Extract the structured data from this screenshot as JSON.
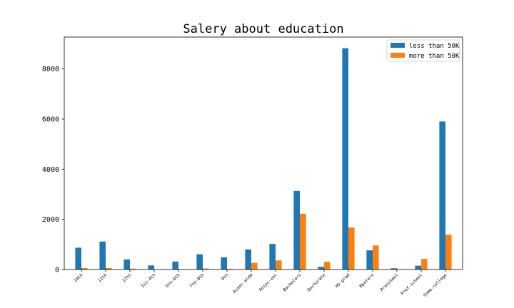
{
  "chart_data": {
    "type": "bar",
    "title": "Salery about education",
    "xlabel": "",
    "ylabel": "",
    "categories": [
      "10th",
      "11th",
      "12th",
      "1st-4th",
      "5th-6th",
      "7th-8th",
      "9th",
      "Assoc-acdm",
      "Assoc-voc",
      "Bachelors",
      "Doctorate",
      "HS-grad",
      "Masters",
      "Preschool",
      "Prof-school",
      "Some-college"
    ],
    "series": [
      {
        "name": "less than 50K",
        "color": "#1f77b4",
        "values": [
          871,
          1115,
          400,
          162,
          317,
          606,
          487,
          802,
          1021,
          3134,
          107,
          8826,
          764,
          51,
          153,
          5904
        ]
      },
      {
        "name": "more than 50K",
        "color": "#ff7f0e",
        "values": [
          62,
          60,
          33,
          6,
          16,
          40,
          27,
          265,
          361,
          2221,
          306,
          1675,
          959,
          0,
          423,
          1387
        ]
      }
    ],
    "ylim": [
      0,
      9270
    ],
    "yticks": [
      0,
      2000,
      4000,
      6000,
      8000
    ],
    "grid": false,
    "legend": "top-right"
  }
}
